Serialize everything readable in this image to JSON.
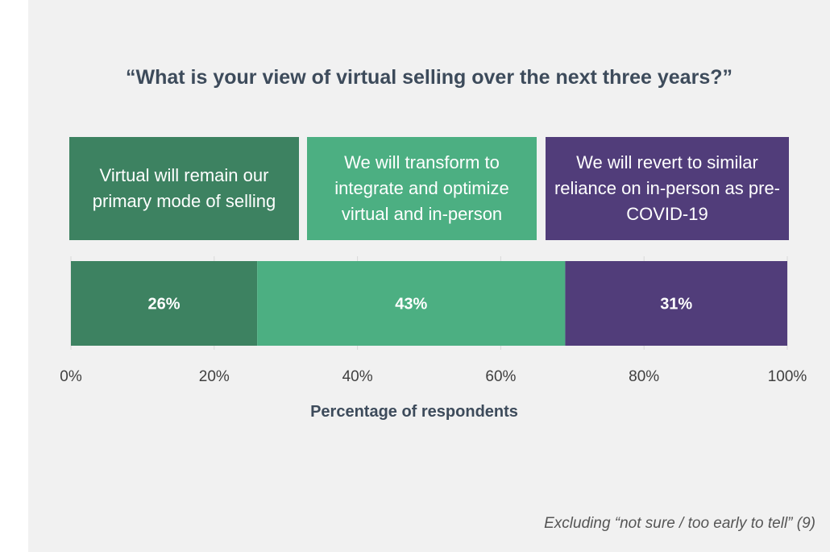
{
  "title": "“What is your view of virtual selling over the next three years?”",
  "categories": [
    {
      "label": "Virtual will remain our primary mode of selling",
      "color": "#3d8261"
    },
    {
      "label": "We will transform to integrate and optimize virtual and in-person",
      "color": "#4caf82"
    },
    {
      "label": "We will revert to similar reliance on in-person as pre-COVID-19",
      "color": "#513d7a"
    }
  ],
  "footnote": "Excluding “not sure / too early to tell” (9)",
  "chart_data": {
    "type": "bar",
    "orientation": "horizontal-stacked",
    "title": "“What is your view of virtual selling over the next three years?”",
    "xlabel": "Percentage of respondents",
    "ylabel": "",
    "xlim": [
      0,
      100
    ],
    "ticks": [
      0,
      20,
      40,
      60,
      80,
      100
    ],
    "tick_labels": [
      "0%",
      "20%",
      "40%",
      "60%",
      "80%",
      "100%"
    ],
    "series": [
      {
        "name": "Virtual will remain our primary mode of selling",
        "value": 26,
        "label": "26%",
        "color": "#3d8261"
      },
      {
        "name": "We will transform to integrate and optimize virtual and in-person",
        "value": 43,
        "label": "43%",
        "color": "#4caf82"
      },
      {
        "name": "We will revert to similar reliance on in-person as pre-COVID-19",
        "value": 31,
        "label": "31%",
        "color": "#513d7a"
      }
    ]
  }
}
